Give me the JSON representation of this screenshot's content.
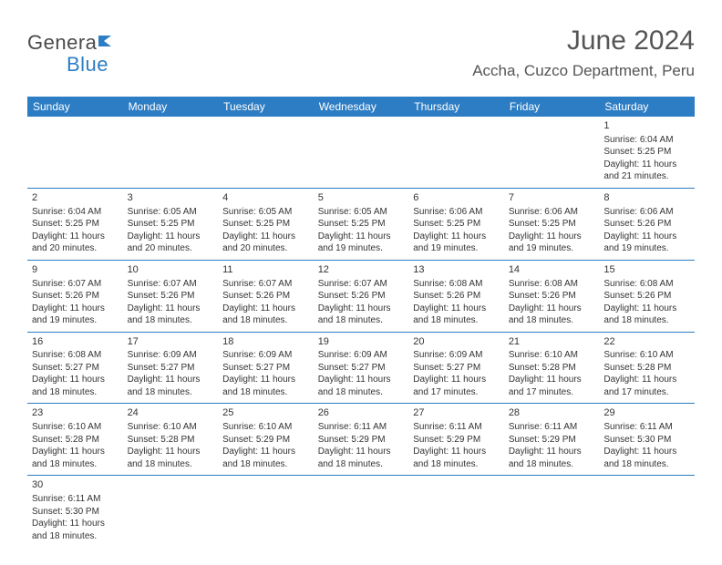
{
  "logo": {
    "part1": "Genera",
    "part2": "Blue"
  },
  "title": "June 2024",
  "location": "Accha, Cuzco Department, Peru",
  "colors": {
    "header_bg": "#2d7dc4",
    "header_text": "#ffffff",
    "border": "#2d7dc4",
    "body_text": "#333333",
    "logo_gray": "#4a4a4a",
    "logo_blue": "#2d7dc4"
  },
  "weekdays": [
    "Sunday",
    "Monday",
    "Tuesday",
    "Wednesday",
    "Thursday",
    "Friday",
    "Saturday"
  ],
  "weeks": [
    [
      null,
      null,
      null,
      null,
      null,
      null,
      {
        "n": "1",
        "sr": "Sunrise: 6:04 AM",
        "ss": "Sunset: 5:25 PM",
        "dl": "Daylight: 11 hours and 21 minutes."
      }
    ],
    [
      {
        "n": "2",
        "sr": "Sunrise: 6:04 AM",
        "ss": "Sunset: 5:25 PM",
        "dl": "Daylight: 11 hours and 20 minutes."
      },
      {
        "n": "3",
        "sr": "Sunrise: 6:05 AM",
        "ss": "Sunset: 5:25 PM",
        "dl": "Daylight: 11 hours and 20 minutes."
      },
      {
        "n": "4",
        "sr": "Sunrise: 6:05 AM",
        "ss": "Sunset: 5:25 PM",
        "dl": "Daylight: 11 hours and 20 minutes."
      },
      {
        "n": "5",
        "sr": "Sunrise: 6:05 AM",
        "ss": "Sunset: 5:25 PM",
        "dl": "Daylight: 11 hours and 19 minutes."
      },
      {
        "n": "6",
        "sr": "Sunrise: 6:06 AM",
        "ss": "Sunset: 5:25 PM",
        "dl": "Daylight: 11 hours and 19 minutes."
      },
      {
        "n": "7",
        "sr": "Sunrise: 6:06 AM",
        "ss": "Sunset: 5:25 PM",
        "dl": "Daylight: 11 hours and 19 minutes."
      },
      {
        "n": "8",
        "sr": "Sunrise: 6:06 AM",
        "ss": "Sunset: 5:26 PM",
        "dl": "Daylight: 11 hours and 19 minutes."
      }
    ],
    [
      {
        "n": "9",
        "sr": "Sunrise: 6:07 AM",
        "ss": "Sunset: 5:26 PM",
        "dl": "Daylight: 11 hours and 19 minutes."
      },
      {
        "n": "10",
        "sr": "Sunrise: 6:07 AM",
        "ss": "Sunset: 5:26 PM",
        "dl": "Daylight: 11 hours and 18 minutes."
      },
      {
        "n": "11",
        "sr": "Sunrise: 6:07 AM",
        "ss": "Sunset: 5:26 PM",
        "dl": "Daylight: 11 hours and 18 minutes."
      },
      {
        "n": "12",
        "sr": "Sunrise: 6:07 AM",
        "ss": "Sunset: 5:26 PM",
        "dl": "Daylight: 11 hours and 18 minutes."
      },
      {
        "n": "13",
        "sr": "Sunrise: 6:08 AM",
        "ss": "Sunset: 5:26 PM",
        "dl": "Daylight: 11 hours and 18 minutes."
      },
      {
        "n": "14",
        "sr": "Sunrise: 6:08 AM",
        "ss": "Sunset: 5:26 PM",
        "dl": "Daylight: 11 hours and 18 minutes."
      },
      {
        "n": "15",
        "sr": "Sunrise: 6:08 AM",
        "ss": "Sunset: 5:26 PM",
        "dl": "Daylight: 11 hours and 18 minutes."
      }
    ],
    [
      {
        "n": "16",
        "sr": "Sunrise: 6:08 AM",
        "ss": "Sunset: 5:27 PM",
        "dl": "Daylight: 11 hours and 18 minutes."
      },
      {
        "n": "17",
        "sr": "Sunrise: 6:09 AM",
        "ss": "Sunset: 5:27 PM",
        "dl": "Daylight: 11 hours and 18 minutes."
      },
      {
        "n": "18",
        "sr": "Sunrise: 6:09 AM",
        "ss": "Sunset: 5:27 PM",
        "dl": "Daylight: 11 hours and 18 minutes."
      },
      {
        "n": "19",
        "sr": "Sunrise: 6:09 AM",
        "ss": "Sunset: 5:27 PM",
        "dl": "Daylight: 11 hours and 18 minutes."
      },
      {
        "n": "20",
        "sr": "Sunrise: 6:09 AM",
        "ss": "Sunset: 5:27 PM",
        "dl": "Daylight: 11 hours and 17 minutes."
      },
      {
        "n": "21",
        "sr": "Sunrise: 6:10 AM",
        "ss": "Sunset: 5:28 PM",
        "dl": "Daylight: 11 hours and 17 minutes."
      },
      {
        "n": "22",
        "sr": "Sunrise: 6:10 AM",
        "ss": "Sunset: 5:28 PM",
        "dl": "Daylight: 11 hours and 17 minutes."
      }
    ],
    [
      {
        "n": "23",
        "sr": "Sunrise: 6:10 AM",
        "ss": "Sunset: 5:28 PM",
        "dl": "Daylight: 11 hours and 18 minutes."
      },
      {
        "n": "24",
        "sr": "Sunrise: 6:10 AM",
        "ss": "Sunset: 5:28 PM",
        "dl": "Daylight: 11 hours and 18 minutes."
      },
      {
        "n": "25",
        "sr": "Sunrise: 6:10 AM",
        "ss": "Sunset: 5:29 PM",
        "dl": "Daylight: 11 hours and 18 minutes."
      },
      {
        "n": "26",
        "sr": "Sunrise: 6:11 AM",
        "ss": "Sunset: 5:29 PM",
        "dl": "Daylight: 11 hours and 18 minutes."
      },
      {
        "n": "27",
        "sr": "Sunrise: 6:11 AM",
        "ss": "Sunset: 5:29 PM",
        "dl": "Daylight: 11 hours and 18 minutes."
      },
      {
        "n": "28",
        "sr": "Sunrise: 6:11 AM",
        "ss": "Sunset: 5:29 PM",
        "dl": "Daylight: 11 hours and 18 minutes."
      },
      {
        "n": "29",
        "sr": "Sunrise: 6:11 AM",
        "ss": "Sunset: 5:30 PM",
        "dl": "Daylight: 11 hours and 18 minutes."
      }
    ],
    [
      {
        "n": "30",
        "sr": "Sunrise: 6:11 AM",
        "ss": "Sunset: 5:30 PM",
        "dl": "Daylight: 11 hours and 18 minutes."
      },
      null,
      null,
      null,
      null,
      null,
      null
    ]
  ]
}
